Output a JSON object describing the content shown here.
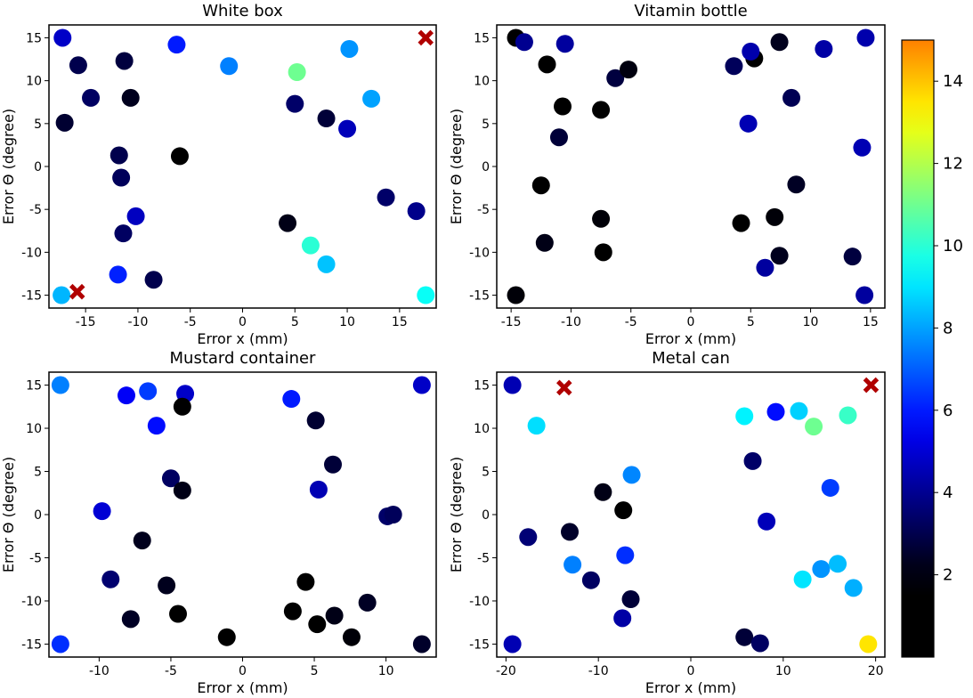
{
  "colorbar": {
    "min": 0.0,
    "max": 15.0,
    "ticks": [
      2,
      4,
      6,
      8,
      10,
      12,
      14
    ],
    "colormap": "jet"
  },
  "chart_data": [
    {
      "type": "scatter",
      "title": "White box",
      "xlabel": "Error x (mm)",
      "ylabel": "Error Θ (degree)",
      "xlim": [
        -18.5,
        18.5
      ],
      "ylim": [
        -16.5,
        16.5
      ],
      "xticks": [
        -15,
        -10,
        -5,
        0,
        5,
        10,
        15
      ],
      "yticks": [
        -15,
        -10,
        -5,
        0,
        5,
        10,
        15
      ],
      "points": [
        {
          "x": -17.2,
          "y": 15.0,
          "c": 4.8
        },
        {
          "x": -15.7,
          "y": 11.8,
          "c": 3.0
        },
        {
          "x": -14.5,
          "y": 8.0,
          "c": 3.3
        },
        {
          "x": -17.0,
          "y": 5.1,
          "c": 2.6
        },
        {
          "x": -11.3,
          "y": 12.3,
          "c": 2.8
        },
        {
          "x": -10.7,
          "y": 8.0,
          "c": 2.3
        },
        {
          "x": -6.3,
          "y": 14.2,
          "c": 6.0
        },
        {
          "x": -1.3,
          "y": 11.7,
          "c": 7.5
        },
        {
          "x": 5.0,
          "y": 7.3,
          "c": 3.4
        },
        {
          "x": 5.2,
          "y": 11.0,
          "c": 11.0
        },
        {
          "x": 8.0,
          "y": 5.6,
          "c": 2.7
        },
        {
          "x": 10.0,
          "y": 4.4,
          "c": 4.6
        },
        {
          "x": 10.2,
          "y": 13.7,
          "c": 7.8
        },
        {
          "x": 12.3,
          "y": 7.9,
          "c": 8.0
        },
        {
          "x": -11.8,
          "y": 1.3,
          "c": 3.0
        },
        {
          "x": -6.0,
          "y": 1.2,
          "c": 1.0
        },
        {
          "x": -11.6,
          "y": -1.3,
          "c": 3.2
        },
        {
          "x": -10.2,
          "y": -5.8,
          "c": 4.7
        },
        {
          "x": -11.4,
          "y": -7.8,
          "c": 3.3
        },
        {
          "x": -8.5,
          "y": -13.2,
          "c": 3.0
        },
        {
          "x": -11.9,
          "y": -12.6,
          "c": 6.1
        },
        {
          "x": 4.3,
          "y": -6.6,
          "c": 2.2
        },
        {
          "x": 6.5,
          "y": -9.2,
          "c": 10.0
        },
        {
          "x": 8.0,
          "y": -11.4,
          "c": 8.5
        },
        {
          "x": 13.7,
          "y": -3.6,
          "c": 3.4
        },
        {
          "x": 16.6,
          "y": -5.2,
          "c": 3.9
        },
        {
          "x": -17.3,
          "y": -15.0,
          "c": 8.3
        },
        {
          "x": 17.5,
          "y": -15.0,
          "c": 9.5
        }
      ],
      "markers_x": [
        {
          "x": 17.5,
          "y": 15.0
        },
        {
          "x": -15.8,
          "y": -14.6
        }
      ]
    },
    {
      "type": "scatter",
      "title": "Vitamin bottle",
      "xlabel": "Error x (mm)",
      "ylabel": "Error Θ (degree)",
      "xlim": [
        -16.2,
        16.2
      ],
      "ylim": [
        -16.5,
        16.5
      ],
      "xticks": [
        -15,
        -10,
        -5,
        0,
        5,
        10,
        15
      ],
      "yticks": [
        -15,
        -10,
        -5,
        0,
        5,
        10,
        15
      ],
      "points": [
        {
          "x": -14.6,
          "y": 15.0,
          "c": 1.8
        },
        {
          "x": -13.9,
          "y": 14.5,
          "c": 4.0
        },
        {
          "x": -12.0,
          "y": 11.9,
          "c": 1.6
        },
        {
          "x": -10.5,
          "y": 14.3,
          "c": 4.2
        },
        {
          "x": -6.3,
          "y": 10.3,
          "c": 2.8
        },
        {
          "x": -5.2,
          "y": 11.3,
          "c": 2.1
        },
        {
          "x": -10.7,
          "y": 7.0,
          "c": 1.5
        },
        {
          "x": -7.5,
          "y": 6.6,
          "c": 1.4
        },
        {
          "x": -11.0,
          "y": 3.4,
          "c": 2.7
        },
        {
          "x": 3.6,
          "y": 11.7,
          "c": 3.2
        },
        {
          "x": 5.3,
          "y": 12.6,
          "c": 1.0
        },
        {
          "x": 5.0,
          "y": 13.4,
          "c": 4.4
        },
        {
          "x": 7.4,
          "y": 14.5,
          "c": 2.3
        },
        {
          "x": 11.1,
          "y": 13.7,
          "c": 4.3
        },
        {
          "x": 14.6,
          "y": 15.0,
          "c": 4.4
        },
        {
          "x": 8.4,
          "y": 8.0,
          "c": 3.1
        },
        {
          "x": 4.8,
          "y": 5.0,
          "c": 4.5
        },
        {
          "x": 14.3,
          "y": 2.2,
          "c": 4.5
        },
        {
          "x": -12.5,
          "y": -2.2,
          "c": 1.6
        },
        {
          "x": 8.8,
          "y": -2.1,
          "c": 2.4
        },
        {
          "x": -7.5,
          "y": -6.1,
          "c": 2.0
        },
        {
          "x": 7.0,
          "y": -5.9,
          "c": 2.0
        },
        {
          "x": 4.2,
          "y": -6.6,
          "c": 1.4
        },
        {
          "x": -12.2,
          "y": -8.9,
          "c": 2.2
        },
        {
          "x": -7.3,
          "y": -10.0,
          "c": 1.5
        },
        {
          "x": 7.4,
          "y": -10.4,
          "c": 2.3
        },
        {
          "x": 6.2,
          "y": -11.8,
          "c": 4.2
        },
        {
          "x": 13.5,
          "y": -10.5,
          "c": 2.8
        },
        {
          "x": -14.6,
          "y": -15.0,
          "c": 2.0
        },
        {
          "x": 14.5,
          "y": -15.0,
          "c": 4.2
        }
      ],
      "markers_x": []
    },
    {
      "type": "scatter",
      "title": "Mustard container",
      "xlabel": "Error x (mm)",
      "ylabel": "Error Θ (degree)",
      "xlim": [
        -13.5,
        13.5
      ],
      "ylim": [
        -16.5,
        16.5
      ],
      "xticks": [
        -10,
        -5,
        0,
        5,
        10
      ],
      "yticks": [
        -15,
        -10,
        -5,
        0,
        5,
        10,
        15
      ],
      "points": [
        {
          "x": -12.7,
          "y": 15.0,
          "c": 7.5
        },
        {
          "x": -8.1,
          "y": 13.8,
          "c": 5.5
        },
        {
          "x": -6.6,
          "y": 14.3,
          "c": 6.5
        },
        {
          "x": -4.0,
          "y": 14.0,
          "c": 4.8
        },
        {
          "x": -4.2,
          "y": 12.5,
          "c": 1.5
        },
        {
          "x": -6.0,
          "y": 10.3,
          "c": 5.8
        },
        {
          "x": 3.4,
          "y": 13.4,
          "c": 6.0
        },
        {
          "x": 5.1,
          "y": 10.9,
          "c": 2.6
        },
        {
          "x": 12.5,
          "y": 15.0,
          "c": 4.8
        },
        {
          "x": 6.3,
          "y": 5.8,
          "c": 2.7
        },
        {
          "x": 5.3,
          "y": 2.9,
          "c": 4.5
        },
        {
          "x": -5.0,
          "y": 4.2,
          "c": 3.3
        },
        {
          "x": -4.2,
          "y": 2.8,
          "c": 2.2
        },
        {
          "x": -9.8,
          "y": 0.4,
          "c": 5.0
        },
        {
          "x": 10.1,
          "y": -0.2,
          "c": 3.4
        },
        {
          "x": 10.5,
          "y": 0.0,
          "c": 3.2
        },
        {
          "x": -7.0,
          "y": -3.0,
          "c": 2.3
        },
        {
          "x": -9.2,
          "y": -7.5,
          "c": 3.5
        },
        {
          "x": -5.3,
          "y": -8.2,
          "c": 2.3
        },
        {
          "x": 4.4,
          "y": -7.8,
          "c": 1.5
        },
        {
          "x": -4.5,
          "y": -11.5,
          "c": 1.3
        },
        {
          "x": -7.8,
          "y": -12.1,
          "c": 2.4
        },
        {
          "x": 3.5,
          "y": -11.2,
          "c": 1.3
        },
        {
          "x": 5.2,
          "y": -12.7,
          "c": 1.8
        },
        {
          "x": 6.4,
          "y": -11.7,
          "c": 2.2
        },
        {
          "x": 8.7,
          "y": -10.2,
          "c": 2.4
        },
        {
          "x": 7.6,
          "y": -14.2,
          "c": 2.0
        },
        {
          "x": -1.1,
          "y": -14.2,
          "c": 1.1
        },
        {
          "x": -12.7,
          "y": -15.0,
          "c": 6.3
        },
        {
          "x": 12.5,
          "y": -15.0,
          "c": 2.5
        }
      ],
      "markers_x": []
    },
    {
      "type": "scatter",
      "title": "Metal can",
      "xlabel": "Error x (mm)",
      "ylabel": "Error Θ (degree)",
      "xlim": [
        -21.0,
        21.0
      ],
      "ylim": [
        -16.5,
        16.5
      ],
      "xticks": [
        -20,
        -10,
        0,
        10,
        20
      ],
      "yticks": [
        -15,
        -10,
        -5,
        0,
        5,
        10,
        15
      ],
      "points": [
        {
          "x": -19.3,
          "y": 15.0,
          "c": 4.5
        },
        {
          "x": -16.7,
          "y": 10.3,
          "c": 8.9
        },
        {
          "x": 5.8,
          "y": 11.4,
          "c": 9.2
        },
        {
          "x": 9.2,
          "y": 11.9,
          "c": 5.8
        },
        {
          "x": 11.7,
          "y": 12.0,
          "c": 8.7
        },
        {
          "x": 13.3,
          "y": 10.2,
          "c": 11.0
        },
        {
          "x": 17.0,
          "y": 11.5,
          "c": 10.2
        },
        {
          "x": 6.7,
          "y": 6.2,
          "c": 3.4
        },
        {
          "x": 15.1,
          "y": 3.1,
          "c": 6.5
        },
        {
          "x": -6.4,
          "y": 4.6,
          "c": 7.6
        },
        {
          "x": -9.5,
          "y": 2.6,
          "c": 2.2
        },
        {
          "x": -7.3,
          "y": 0.5,
          "c": 1.0
        },
        {
          "x": 8.2,
          "y": -0.8,
          "c": 4.6
        },
        {
          "x": -17.6,
          "y": -2.6,
          "c": 3.6
        },
        {
          "x": -13.1,
          "y": -2.0,
          "c": 2.5
        },
        {
          "x": -12.8,
          "y": -5.8,
          "c": 7.5
        },
        {
          "x": -7.1,
          "y": -4.7,
          "c": 6.3
        },
        {
          "x": -10.8,
          "y": -7.6,
          "c": 3.3
        },
        {
          "x": -6.5,
          "y": -9.8,
          "c": 2.7
        },
        {
          "x": -7.4,
          "y": -12.0,
          "c": 4.3
        },
        {
          "x": 12.1,
          "y": -7.5,
          "c": 9.0
        },
        {
          "x": 14.1,
          "y": -6.3,
          "c": 7.8
        },
        {
          "x": 15.9,
          "y": -5.7,
          "c": 8.4
        },
        {
          "x": 17.6,
          "y": -8.5,
          "c": 8.2
        },
        {
          "x": 5.8,
          "y": -14.2,
          "c": 2.7
        },
        {
          "x": 7.5,
          "y": -14.9,
          "c": 3.3
        },
        {
          "x": -19.3,
          "y": -15.0,
          "c": 4.5
        },
        {
          "x": 19.2,
          "y": -15.0,
          "c": 13.5
        }
      ],
      "markers_x": [
        {
          "x": -13.7,
          "y": 14.7
        },
        {
          "x": 19.5,
          "y": 15.0
        }
      ]
    }
  ]
}
